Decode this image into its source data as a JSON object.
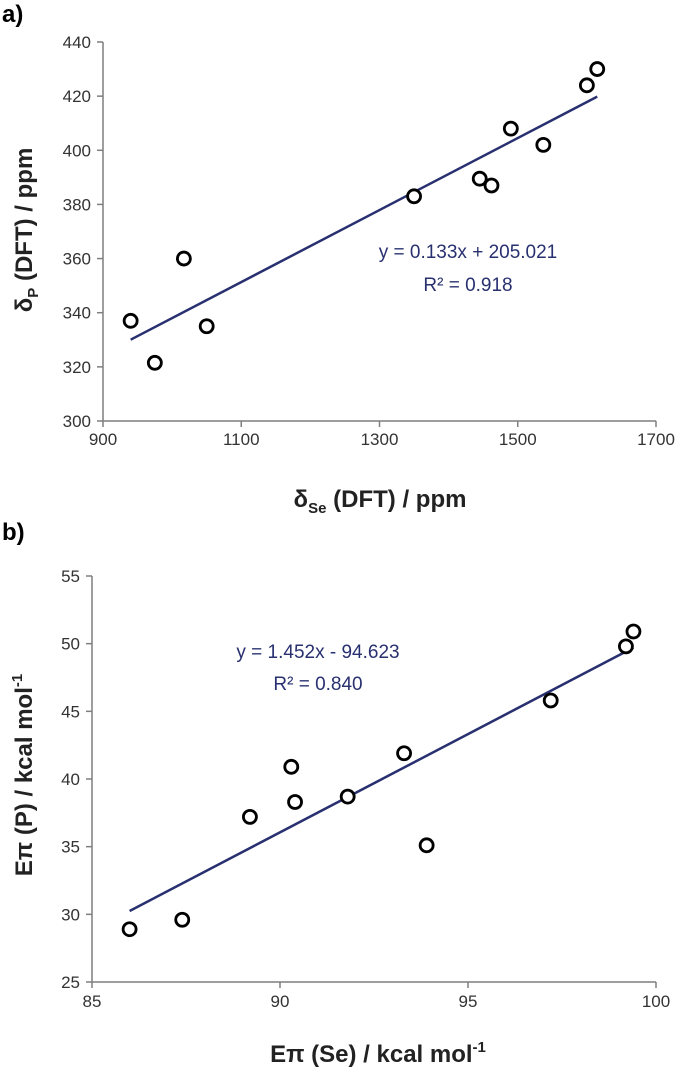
{
  "colors": {
    "line": "#283070",
    "marker": "#000000",
    "axis": "#7f7f7f",
    "annotation": "#283070"
  },
  "chart_data": [
    {
      "panel_label": "a)",
      "type": "scatter",
      "x_ticks": [
        "900",
        "1100",
        "1300",
        "1500",
        "1700"
      ],
      "y_ticks": [
        "300",
        "320",
        "340",
        "360",
        "380",
        "400",
        "420",
        "440"
      ],
      "xlim": [
        900,
        1700
      ],
      "ylim": [
        300,
        440
      ],
      "xlabel": {
        "main": "δ",
        "sub": "Se",
        "rest": " (DFT) / ppm"
      },
      "ylabel": {
        "main": "δ",
        "sub": "P",
        "rest": " (DFT) / ppm"
      },
      "points": [
        {
          "x": 940,
          "y": 337
        },
        {
          "x": 975,
          "y": 321.5
        },
        {
          "x": 1017,
          "y": 360
        },
        {
          "x": 1050,
          "y": 335
        },
        {
          "x": 1350,
          "y": 383
        },
        {
          "x": 1445,
          "y": 389.5
        },
        {
          "x": 1462,
          "y": 387
        },
        {
          "x": 1490,
          "y": 408
        },
        {
          "x": 1537,
          "y": 402
        },
        {
          "x": 1600,
          "y": 424
        },
        {
          "x": 1615,
          "y": 430
        }
      ],
      "fit": {
        "slope": 0.133,
        "intercept": 205.021,
        "x_range": [
          940,
          1615
        ]
      },
      "equation": "y = 0.133x + 205.021",
      "r2": "R² = 0.918"
    },
    {
      "panel_label": "b)",
      "type": "scatter",
      "x_ticks": [
        "85",
        "90",
        "95",
        "100"
      ],
      "y_ticks": [
        "25",
        "30",
        "35",
        "40",
        "45",
        "50",
        "55"
      ],
      "xlim": [
        85,
        100
      ],
      "ylim": [
        25,
        55
      ],
      "xlabel": {
        "main": "Eπ",
        "sub": "",
        "rest": " (Se) / kcal mol",
        "sup": "-1"
      },
      "ylabel": {
        "main": "Eπ",
        "sub": "",
        "rest": " (P) / kcal mol",
        "sup": "-1"
      },
      "points": [
        {
          "x": 86.0,
          "y": 28.9
        },
        {
          "x": 87.4,
          "y": 29.6
        },
        {
          "x": 89.2,
          "y": 37.2
        },
        {
          "x": 90.3,
          "y": 40.9
        },
        {
          "x": 90.4,
          "y": 38.3
        },
        {
          "x": 91.8,
          "y": 38.7
        },
        {
          "x": 93.3,
          "y": 41.9
        },
        {
          "x": 93.9,
          "y": 35.1
        },
        {
          "x": 97.2,
          "y": 45.8
        },
        {
          "x": 99.2,
          "y": 49.8
        },
        {
          "x": 99.4,
          "y": 50.9
        }
      ],
      "fit": {
        "slope": 1.452,
        "intercept": -94.623,
        "x_range": [
          86.0,
          99.4
        ]
      },
      "equation": "y = 1.452x - 94.623",
      "r2": "R² = 0.840"
    }
  ]
}
